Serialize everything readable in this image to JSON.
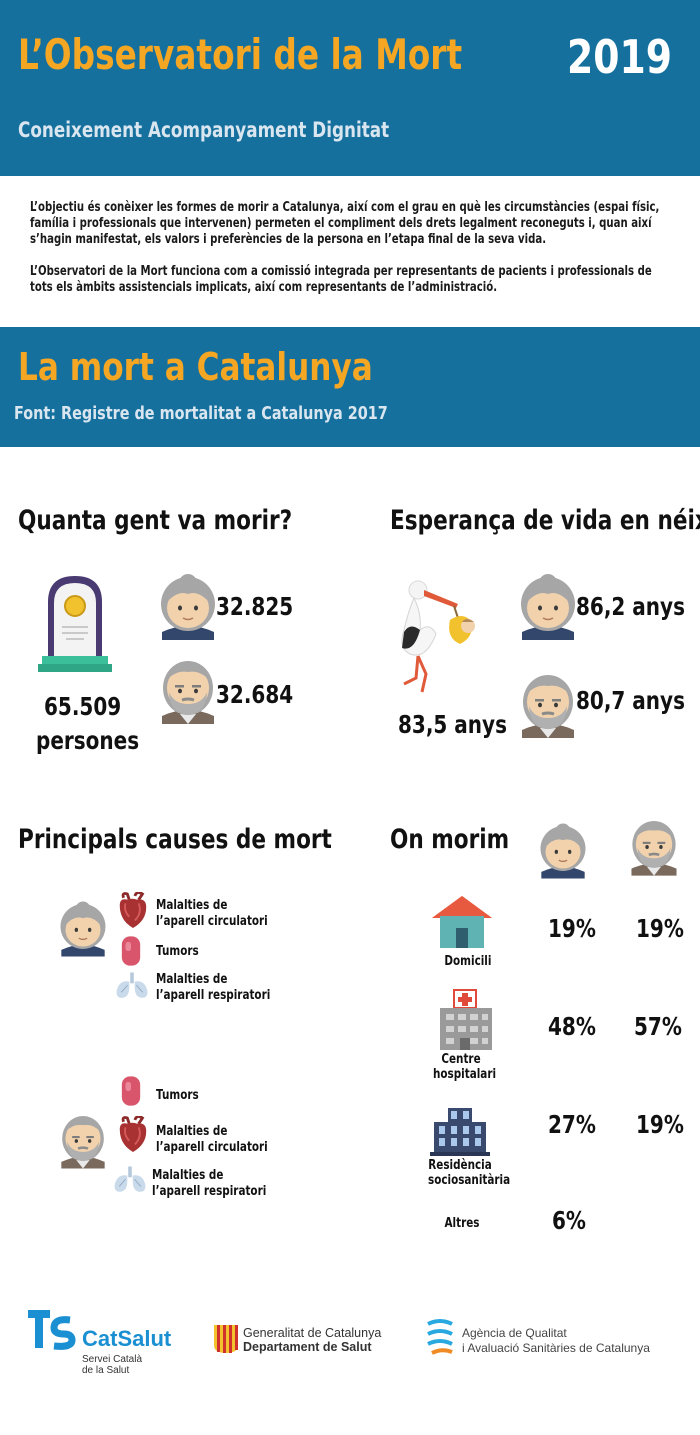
{
  "header": {
    "title": "L’Observatori de la Mort",
    "year": "2019",
    "subtitle": "Coneixement Acompanyament Dignitat"
  },
  "intro": {
    "p1": "L’objectiu és conèixer les formes de morir a Catalunya, així com el grau en què les circumstàncies (espai físic, família i professionals que intervenen) permeten el compliment dels drets legalment reconeguts i, quan així s’hagin manifestat, els valors i preferències de la persona en l’etapa final de la seva vida.",
    "p2": "L’Observatori de la Mort funciona com a comissió integrada per representants de pacients i professionals de tots els àmbits assistencials implicats, així com representants de l’administració."
  },
  "band": {
    "title": "La mort a Catalunya",
    "source": "Font: Registre de mortalitat a Catalunya 2017"
  },
  "deaths": {
    "title": "Quanta gent va morir?",
    "total_number": "65.509",
    "total_unit": "persones",
    "women": "32.825",
    "men": "32.684"
  },
  "life_expectancy": {
    "title": "Esperança de vida en néixer",
    "total": "83,5 anys",
    "women": "86,2 anys",
    "men": "80,7 anys"
  },
  "causes": {
    "title": "Principals causes de mort",
    "women": [
      "Malalties de l’aparell circulatori",
      "Tumors",
      "Malalties de l’aparell respiratori"
    ],
    "men": [
      "Tumors",
      "Malalties de l’aparell circulatori",
      "Malalties de l’aparell respiratori"
    ]
  },
  "where": {
    "title": "On morim",
    "rows": [
      {
        "label": "Domicili",
        "women": "19%",
        "men": "19%"
      },
      {
        "label": "Centre hospitalari",
        "women": "48%",
        "men": "57%"
      },
      {
        "label": "Residència sociosanitària",
        "women": "27%",
        "men": "19%"
      },
      {
        "label": "Altres",
        "total": "6%"
      }
    ]
  },
  "logos": {
    "catsalut_name": "CatSalut",
    "catsalut_sub1": "Servei Català",
    "catsalut_sub2": "de la Salut",
    "gencat_line1": "Generalitat de Catalunya",
    "gencat_line2": "Departament de Salut",
    "aquas_line1": "Agència de Qualitat",
    "aquas_line2": "i Avaluació Sanitàries de Catalunya"
  },
  "colors": {
    "header_blue": "#16709e",
    "accent_orange": "#f5a623"
  }
}
